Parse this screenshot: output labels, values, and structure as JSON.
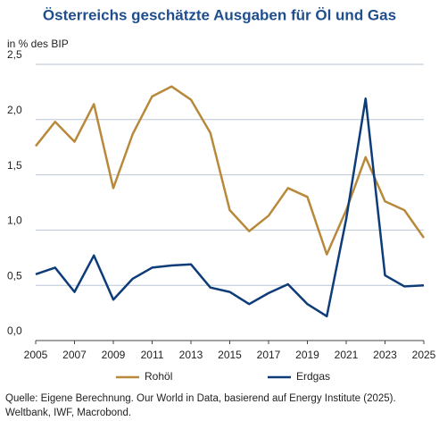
{
  "chart_data": {
    "type": "line",
    "title": "Österreichs geschätzte Ausgaben für Öl und Gas",
    "ylabel": "in % des BIP",
    "x": [
      2005,
      2006,
      2007,
      2008,
      2009,
      2010,
      2011,
      2012,
      2013,
      2014,
      2015,
      2016,
      2017,
      2018,
      2019,
      2020,
      2021,
      2022,
      2023,
      2024,
      2025
    ],
    "series": [
      {
        "name": "Rohöl",
        "color": "#b8893a",
        "values": [
          1.76,
          1.98,
          1.8,
          2.14,
          1.38,
          1.87,
          2.21,
          2.3,
          2.18,
          1.88,
          1.18,
          0.99,
          1.13,
          1.38,
          1.3,
          0.78,
          1.18,
          1.66,
          1.26,
          1.18,
          0.93
        ]
      },
      {
        "name": "Erdgas",
        "color": "#0d3c78",
        "values": [
          0.6,
          0.66,
          0.44,
          0.77,
          0.37,
          0.56,
          0.66,
          0.68,
          0.69,
          0.48,
          0.44,
          0.33,
          0.43,
          0.51,
          0.33,
          0.22,
          1.1,
          2.19,
          0.59,
          0.49,
          0.5
        ]
      }
    ],
    "xlim": [
      2005,
      2025
    ],
    "xticks": [
      2005,
      2007,
      2009,
      2011,
      2013,
      2015,
      2017,
      2019,
      2021,
      2023,
      2025
    ],
    "ylim": [
      0,
      2.5
    ],
    "yticks": [
      {
        "value": 0,
        "label": "0,0"
      },
      {
        "value": 0.5,
        "label": "0,5"
      },
      {
        "value": 1,
        "label": "1,0"
      },
      {
        "value": 1.5,
        "label": "1,5"
      },
      {
        "value": 2,
        "label": "2,0"
      },
      {
        "value": 2.5,
        "label": "2,5"
      }
    ],
    "grid": true,
    "legend": "bottom",
    "source": [
      "Quelle: Eigene Berechnung. Our World in Data, basierend auf Energy Institute (2025).",
      "Weltbank, IWF, Macrobond."
    ]
  }
}
